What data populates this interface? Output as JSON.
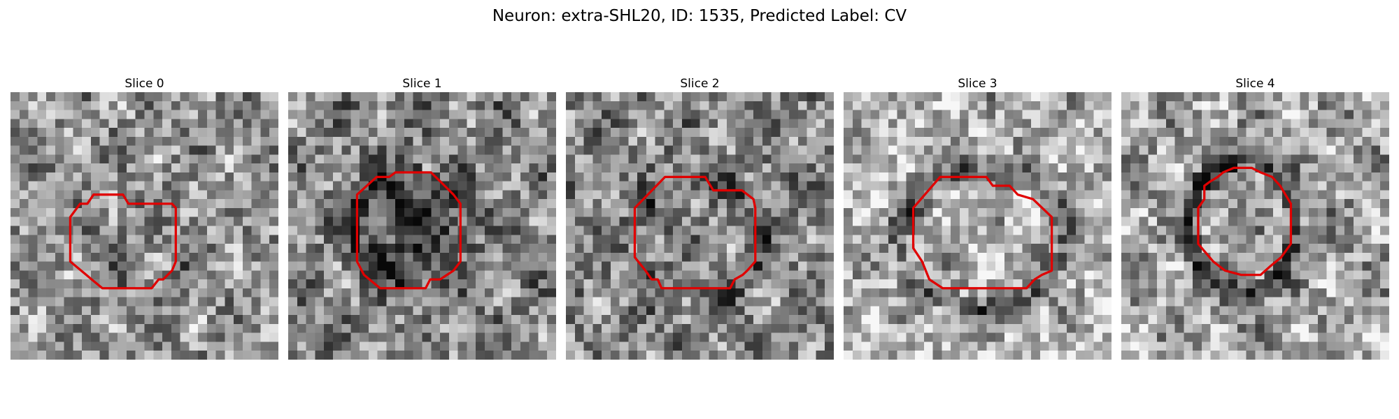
{
  "figure": {
    "title": "Neuron: extra-SHL20, ID: 1535, Predicted Label: CV"
  },
  "panels": [
    {
      "label": "Slice 0",
      "outline_color": "#e00000",
      "outline": [
        [
          0.343,
          0.383
        ],
        [
          0.42,
          0.383
        ],
        [
          0.44,
          0.417
        ],
        [
          0.603,
          0.417
        ],
        [
          0.617,
          0.433
        ],
        [
          0.617,
          0.633
        ],
        [
          0.603,
          0.667
        ],
        [
          0.57,
          0.7
        ],
        [
          0.553,
          0.7
        ],
        [
          0.527,
          0.733
        ],
        [
          0.343,
          0.733
        ],
        [
          0.303,
          0.7
        ],
        [
          0.223,
          0.633
        ],
        [
          0.223,
          0.467
        ],
        [
          0.26,
          0.417
        ],
        [
          0.287,
          0.417
        ],
        [
          0.31,
          0.383
        ]
      ]
    },
    {
      "label": "Slice 1",
      "outline_color": "#e00000",
      "outline": [
        [
          0.33,
          0.317
        ],
        [
          0.377,
          0.317
        ],
        [
          0.4,
          0.3
        ],
        [
          0.533,
          0.3
        ],
        [
          0.567,
          0.333
        ],
        [
          0.617,
          0.383
        ],
        [
          0.643,
          0.417
        ],
        [
          0.643,
          0.633
        ],
        [
          0.617,
          0.667
        ],
        [
          0.567,
          0.7
        ],
        [
          0.53,
          0.7
        ],
        [
          0.513,
          0.733
        ],
        [
          0.343,
          0.733
        ],
        [
          0.283,
          0.683
        ],
        [
          0.257,
          0.633
        ],
        [
          0.257,
          0.383
        ]
      ]
    },
    {
      "label": "Slice 2",
      "outline_color": "#e00000",
      "outline": [
        [
          0.37,
          0.317
        ],
        [
          0.52,
          0.317
        ],
        [
          0.55,
          0.367
        ],
        [
          0.657,
          0.367
        ],
        [
          0.7,
          0.4
        ],
        [
          0.707,
          0.433
        ],
        [
          0.707,
          0.633
        ],
        [
          0.677,
          0.667
        ],
        [
          0.66,
          0.683
        ],
        [
          0.63,
          0.7
        ],
        [
          0.613,
          0.733
        ],
        [
          0.357,
          0.733
        ],
        [
          0.343,
          0.7
        ],
        [
          0.32,
          0.7
        ],
        [
          0.297,
          0.667
        ],
        [
          0.257,
          0.617
        ],
        [
          0.257,
          0.433
        ]
      ]
    },
    {
      "label": "Slice 3",
      "outline_color": "#e00000",
      "outline": [
        [
          0.36,
          0.317
        ],
        [
          0.533,
          0.317
        ],
        [
          0.557,
          0.35
        ],
        [
          0.62,
          0.35
        ],
        [
          0.65,
          0.383
        ],
        [
          0.707,
          0.4
        ],
        [
          0.777,
          0.467
        ],
        [
          0.777,
          0.667
        ],
        [
          0.74,
          0.683
        ],
        [
          0.713,
          0.7
        ],
        [
          0.683,
          0.733
        ],
        [
          0.37,
          0.733
        ],
        [
          0.32,
          0.7
        ],
        [
          0.293,
          0.633
        ],
        [
          0.26,
          0.583
        ],
        [
          0.26,
          0.433
        ],
        [
          0.317,
          0.367
        ]
      ]
    },
    {
      "label": "Slice 4",
      "outline_color": "#e00000",
      "outline": [
        [
          0.42,
          0.283
        ],
        [
          0.487,
          0.283
        ],
        [
          0.52,
          0.3
        ],
        [
          0.563,
          0.317
        ],
        [
          0.593,
          0.35
        ],
        [
          0.633,
          0.417
        ],
        [
          0.633,
          0.567
        ],
        [
          0.597,
          0.617
        ],
        [
          0.557,
          0.65
        ],
        [
          0.52,
          0.683
        ],
        [
          0.447,
          0.683
        ],
        [
          0.387,
          0.667
        ],
        [
          0.343,
          0.633
        ],
        [
          0.287,
          0.567
        ],
        [
          0.287,
          0.433
        ],
        [
          0.31,
          0.4
        ],
        [
          0.31,
          0.35
        ],
        [
          0.333,
          0.333
        ],
        [
          0.36,
          0.317
        ],
        [
          0.38,
          0.3
        ]
      ]
    }
  ]
}
